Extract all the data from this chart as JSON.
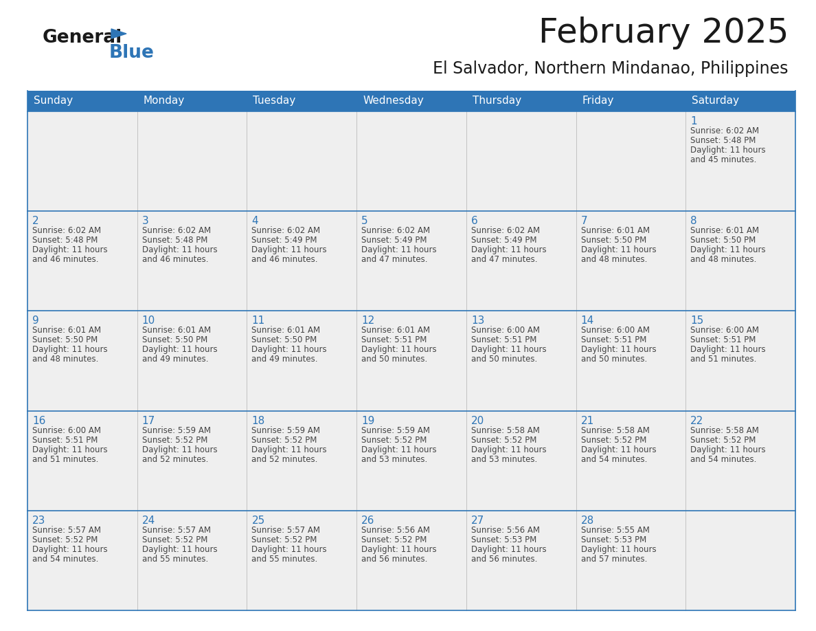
{
  "title": "February 2025",
  "subtitle": "El Salvador, Northern Mindanao, Philippines",
  "header_color": "#2E75B6",
  "header_text_color": "#FFFFFF",
  "cell_bg": "#EFEFEF",
  "cell_bg_white": "#FFFFFF",
  "day_number_color": "#2E75B6",
  "text_color": "#444444",
  "border_color": "#2E75B6",
  "grid_line_color": "#AAAAAA",
  "days_of_week": [
    "Sunday",
    "Monday",
    "Tuesday",
    "Wednesday",
    "Thursday",
    "Friday",
    "Saturday"
  ],
  "calendar_data": [
    [
      null,
      null,
      null,
      null,
      null,
      null,
      {
        "day": 1,
        "sunrise": "6:02 AM",
        "sunset": "5:48 PM",
        "daylight": "11 hours and 45 minutes."
      }
    ],
    [
      {
        "day": 2,
        "sunrise": "6:02 AM",
        "sunset": "5:48 PM",
        "daylight": "11 hours and 46 minutes."
      },
      {
        "day": 3,
        "sunrise": "6:02 AM",
        "sunset": "5:48 PM",
        "daylight": "11 hours and 46 minutes."
      },
      {
        "day": 4,
        "sunrise": "6:02 AM",
        "sunset": "5:49 PM",
        "daylight": "11 hours and 46 minutes."
      },
      {
        "day": 5,
        "sunrise": "6:02 AM",
        "sunset": "5:49 PM",
        "daylight": "11 hours and 47 minutes."
      },
      {
        "day": 6,
        "sunrise": "6:02 AM",
        "sunset": "5:49 PM",
        "daylight": "11 hours and 47 minutes."
      },
      {
        "day": 7,
        "sunrise": "6:01 AM",
        "sunset": "5:50 PM",
        "daylight": "11 hours and 48 minutes."
      },
      {
        "day": 8,
        "sunrise": "6:01 AM",
        "sunset": "5:50 PM",
        "daylight": "11 hours and 48 minutes."
      }
    ],
    [
      {
        "day": 9,
        "sunrise": "6:01 AM",
        "sunset": "5:50 PM",
        "daylight": "11 hours and 48 minutes."
      },
      {
        "day": 10,
        "sunrise": "6:01 AM",
        "sunset": "5:50 PM",
        "daylight": "11 hours and 49 minutes."
      },
      {
        "day": 11,
        "sunrise": "6:01 AM",
        "sunset": "5:50 PM",
        "daylight": "11 hours and 49 minutes."
      },
      {
        "day": 12,
        "sunrise": "6:01 AM",
        "sunset": "5:51 PM",
        "daylight": "11 hours and 50 minutes."
      },
      {
        "day": 13,
        "sunrise": "6:00 AM",
        "sunset": "5:51 PM",
        "daylight": "11 hours and 50 minutes."
      },
      {
        "day": 14,
        "sunrise": "6:00 AM",
        "sunset": "5:51 PM",
        "daylight": "11 hours and 50 minutes."
      },
      {
        "day": 15,
        "sunrise": "6:00 AM",
        "sunset": "5:51 PM",
        "daylight": "11 hours and 51 minutes."
      }
    ],
    [
      {
        "day": 16,
        "sunrise": "6:00 AM",
        "sunset": "5:51 PM",
        "daylight": "11 hours and 51 minutes."
      },
      {
        "day": 17,
        "sunrise": "5:59 AM",
        "sunset": "5:52 PM",
        "daylight": "11 hours and 52 minutes."
      },
      {
        "day": 18,
        "sunrise": "5:59 AM",
        "sunset": "5:52 PM",
        "daylight": "11 hours and 52 minutes."
      },
      {
        "day": 19,
        "sunrise": "5:59 AM",
        "sunset": "5:52 PM",
        "daylight": "11 hours and 53 minutes."
      },
      {
        "day": 20,
        "sunrise": "5:58 AM",
        "sunset": "5:52 PM",
        "daylight": "11 hours and 53 minutes."
      },
      {
        "day": 21,
        "sunrise": "5:58 AM",
        "sunset": "5:52 PM",
        "daylight": "11 hours and 54 minutes."
      },
      {
        "day": 22,
        "sunrise": "5:58 AM",
        "sunset": "5:52 PM",
        "daylight": "11 hours and 54 minutes."
      }
    ],
    [
      {
        "day": 23,
        "sunrise": "5:57 AM",
        "sunset": "5:52 PM",
        "daylight": "11 hours and 54 minutes."
      },
      {
        "day": 24,
        "sunrise": "5:57 AM",
        "sunset": "5:52 PM",
        "daylight": "11 hours and 55 minutes."
      },
      {
        "day": 25,
        "sunrise": "5:57 AM",
        "sunset": "5:52 PM",
        "daylight": "11 hours and 55 minutes."
      },
      {
        "day": 26,
        "sunrise": "5:56 AM",
        "sunset": "5:52 PM",
        "daylight": "11 hours and 56 minutes."
      },
      {
        "day": 27,
        "sunrise": "5:56 AM",
        "sunset": "5:53 PM",
        "daylight": "11 hours and 56 minutes."
      },
      {
        "day": 28,
        "sunrise": "5:55 AM",
        "sunset": "5:53 PM",
        "daylight": "11 hours and 57 minutes."
      },
      null
    ]
  ],
  "logo_text_general": "General",
  "logo_text_blue": "Blue",
  "logo_triangle_color": "#2E75B6",
  "title_fontsize": 36,
  "subtitle_fontsize": 17,
  "header_fontsize": 11,
  "day_num_fontsize": 11,
  "cell_text_fontsize": 8.5
}
